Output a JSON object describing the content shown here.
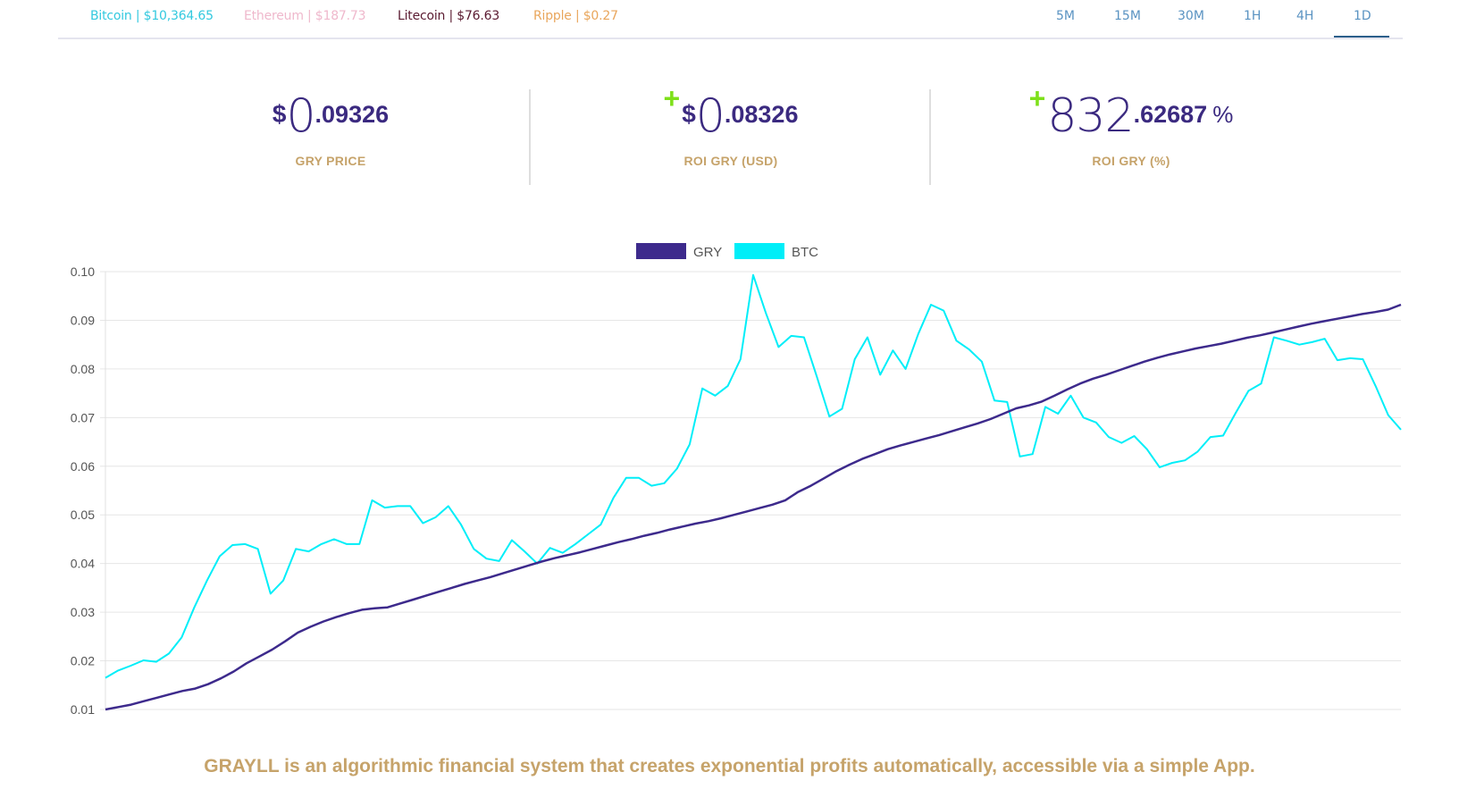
{
  "tickers": [
    {
      "label": "Bitcoin | $10,364.65",
      "color": "#33c9df"
    },
    {
      "label": "Ethereum | $187.73",
      "color": "#efb8cc"
    },
    {
      "label": "Litecoin | $76.63",
      "color": "#5a1a30"
    },
    {
      "label": "Ripple | $0.27",
      "color": "#e9a65c"
    }
  ],
  "timeframes": [
    "5M",
    "15M",
    "30M",
    "1H",
    "4H",
    "1D"
  ],
  "active_timeframe": "1D",
  "stats": {
    "price": {
      "prefix": "$",
      "big": "0",
      "frac": ".09326",
      "label": "GRY PRICE"
    },
    "roi_usd": {
      "sign": "+",
      "prefix": "$",
      "big": "0",
      "frac": ".08326",
      "label": "ROI GRY (USD)"
    },
    "roi_pct": {
      "sign": "+",
      "big": "832",
      "frac": ".62687",
      "suffix": "%",
      "label": "ROI GRY (%)"
    }
  },
  "colors": {
    "accent": "#3b2a80",
    "gold": "#c6a36a",
    "plus": "#7ee01a",
    "btc": "#00eef8",
    "gry": "#3d2a8c"
  },
  "chart_data": {
    "type": "line",
    "ylim": [
      0.01,
      0.1
    ],
    "yticks": [
      "0.10",
      "0.09",
      "0.08",
      "0.07",
      "0.06",
      "0.05",
      "0.04",
      "0.03",
      "0.02",
      "0.01"
    ],
    "grid": true,
    "legend": "top-center",
    "series": [
      {
        "name": "GRY",
        "color": "#3d2a8c",
        "values": [
          0.01,
          0.0105,
          0.011,
          0.0117,
          0.0124,
          0.0131,
          0.0138,
          0.0143,
          0.0152,
          0.0164,
          0.0178,
          0.0195,
          0.0209,
          0.0223,
          0.024,
          0.0258,
          0.027,
          0.0281,
          0.029,
          0.0298,
          0.0305,
          0.0308,
          0.031,
          0.0318,
          0.0326,
          0.0334,
          0.0342,
          0.035,
          0.0358,
          0.0365,
          0.0372,
          0.038,
          0.0388,
          0.0396,
          0.0404,
          0.0411,
          0.0417,
          0.0423,
          0.043,
          0.0437,
          0.0444,
          0.045,
          0.0457,
          0.0463,
          0.047,
          0.0476,
          0.0482,
          0.0487,
          0.0493,
          0.05,
          0.0507,
          0.0514,
          0.0521,
          0.053,
          0.0547,
          0.056,
          0.0575,
          0.059,
          0.0603,
          0.0615,
          0.0625,
          0.0635,
          0.0643,
          0.065,
          0.0657,
          0.0664,
          0.0672,
          0.068,
          0.0688,
          0.0697,
          0.0708,
          0.0719,
          0.0725,
          0.0733,
          0.0745,
          0.0758,
          0.077,
          0.078,
          0.0788,
          0.0797,
          0.0806,
          0.0815,
          0.0823,
          0.083,
          0.0836,
          0.0842,
          0.0847,
          0.0852,
          0.0858,
          0.0864,
          0.0869,
          0.0875,
          0.0881,
          0.0887,
          0.0893,
          0.0898,
          0.0903,
          0.0908,
          0.0913,
          0.0917,
          0.0922,
          0.0932
        ]
      },
      {
        "name": "BTC",
        "color": "#00eef8",
        "values": [
          0.0165,
          0.018,
          0.019,
          0.0201,
          0.0198,
          0.0215,
          0.0248,
          0.031,
          0.0365,
          0.0415,
          0.0438,
          0.044,
          0.043,
          0.0338,
          0.0365,
          0.043,
          0.0425,
          0.044,
          0.045,
          0.044,
          0.044,
          0.053,
          0.0515,
          0.0518,
          0.0518,
          0.0483,
          0.0495,
          0.0518,
          0.048,
          0.043,
          0.041,
          0.0405,
          0.0448,
          0.0425,
          0.04,
          0.0432,
          0.0422,
          0.044,
          0.046,
          0.048,
          0.0535,
          0.0576,
          0.0576,
          0.056,
          0.0565,
          0.0595,
          0.0645,
          0.076,
          0.0745,
          0.0765,
          0.082,
          0.0993,
          0.0915,
          0.0845,
          0.0868,
          0.0865,
          0.0785,
          0.0702,
          0.0718,
          0.082,
          0.0865,
          0.0788,
          0.0838,
          0.08,
          0.0872,
          0.0932,
          0.092,
          0.0858,
          0.084,
          0.0815,
          0.0735,
          0.0732,
          0.062,
          0.0625,
          0.0722,
          0.0708,
          0.0745,
          0.07,
          0.069,
          0.066,
          0.0648,
          0.0662,
          0.0635,
          0.0598,
          0.0607,
          0.0612,
          0.063,
          0.066,
          0.0663,
          0.071,
          0.0755,
          0.077,
          0.0865,
          0.0858,
          0.085,
          0.0855,
          0.0862,
          0.0818,
          0.0822,
          0.082,
          0.0765,
          0.0705,
          0.0675
        ]
      }
    ]
  },
  "footer_text": "GRAYLL is an algorithmic financial system that creates exponential profits automatically, accessible via a simple App."
}
